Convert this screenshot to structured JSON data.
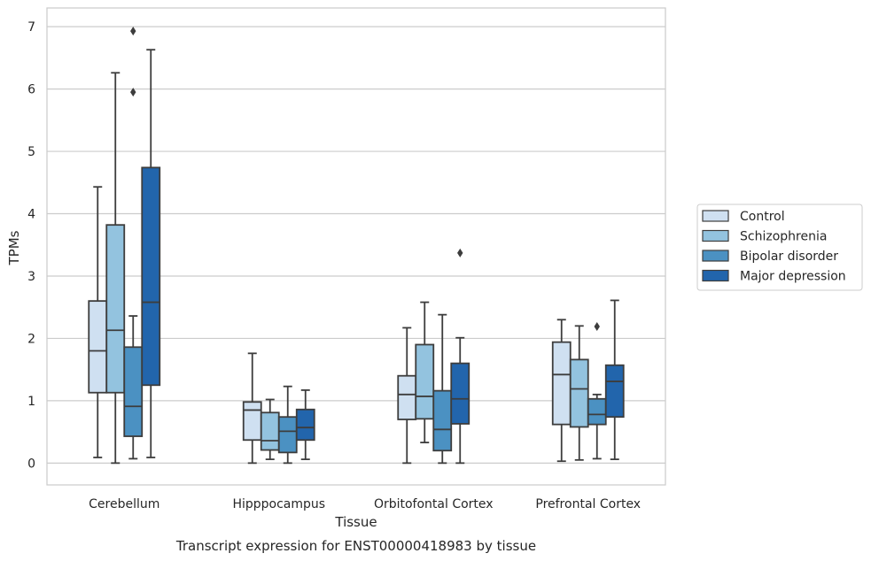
{
  "chart_data": {
    "type": "box",
    "xlabel": "Tissue",
    "ylabel": "TPMs",
    "caption": "Transcript expression for ENST00000418983 by tissue",
    "ylim": [
      -0.35,
      7.3
    ],
    "yticks": [
      0,
      1,
      2,
      3,
      4,
      5,
      6,
      7
    ],
    "grid": "horizontal",
    "legend_position": "right",
    "categories": [
      "Cerebellum",
      "Hipppocampus",
      "Orbitofontal Cortex",
      "Prefrontal Cortex"
    ],
    "series": [
      {
        "name": "Control",
        "color": "#cfe0f1",
        "boxes": [
          {
            "whislo": 0.09,
            "q1": 1.13,
            "med": 1.8,
            "q3": 2.6,
            "whishi": 4.43,
            "fliers": []
          },
          {
            "whislo": 0.0,
            "q1": 0.37,
            "med": 0.85,
            "q3": 0.98,
            "whishi": 1.76,
            "fliers": []
          },
          {
            "whislo": 0.0,
            "q1": 0.7,
            "med": 1.1,
            "q3": 1.4,
            "whishi": 2.17,
            "fliers": []
          },
          {
            "whislo": 0.03,
            "q1": 0.62,
            "med": 1.42,
            "q3": 1.94,
            "whishi": 2.3,
            "fliers": []
          }
        ]
      },
      {
        "name": "Schizophrenia",
        "color": "#93c3df",
        "boxes": [
          {
            "whislo": 0.0,
            "q1": 1.13,
            "med": 2.13,
            "q3": 3.82,
            "whishi": 6.26,
            "fliers": []
          },
          {
            "whislo": 0.06,
            "q1": 0.21,
            "med": 0.36,
            "q3": 0.81,
            "whishi": 1.02,
            "fliers": []
          },
          {
            "whislo": 0.33,
            "q1": 0.71,
            "med": 1.07,
            "q3": 1.9,
            "whishi": 2.58,
            "fliers": []
          },
          {
            "whislo": 0.05,
            "q1": 0.58,
            "med": 1.19,
            "q3": 1.66,
            "whishi": 2.2,
            "fliers": []
          }
        ]
      },
      {
        "name": "Bipolar disorder",
        "color": "#4b91c2",
        "boxes": [
          {
            "whislo": 0.07,
            "q1": 0.43,
            "med": 0.91,
            "q3": 1.86,
            "whishi": 2.36,
            "fliers": [
              5.95,
              6.93
            ]
          },
          {
            "whislo": 0.0,
            "q1": 0.17,
            "med": 0.51,
            "q3": 0.74,
            "whishi": 1.23,
            "fliers": []
          },
          {
            "whislo": 0.0,
            "q1": 0.2,
            "med": 0.54,
            "q3": 1.16,
            "whishi": 2.38,
            "fliers": []
          },
          {
            "whislo": 0.07,
            "q1": 0.62,
            "med": 0.78,
            "q3": 1.03,
            "whishi": 1.1,
            "fliers": [
              2.19
            ]
          }
        ]
      },
      {
        "name": "Major depression",
        "color": "#2265ac",
        "boxes": [
          {
            "whislo": 0.09,
            "q1": 1.25,
            "med": 2.58,
            "q3": 4.74,
            "whishi": 6.63,
            "fliers": []
          },
          {
            "whislo": 0.06,
            "q1": 0.37,
            "med": 0.57,
            "q3": 0.86,
            "whishi": 1.17,
            "fliers": []
          },
          {
            "whislo": 0.0,
            "q1": 0.63,
            "med": 1.03,
            "q3": 1.6,
            "whishi": 2.01,
            "fliers": [
              3.37
            ]
          },
          {
            "whislo": 0.06,
            "q1": 0.74,
            "med": 1.31,
            "q3": 1.57,
            "whishi": 2.61,
            "fliers": []
          }
        ]
      }
    ]
  }
}
